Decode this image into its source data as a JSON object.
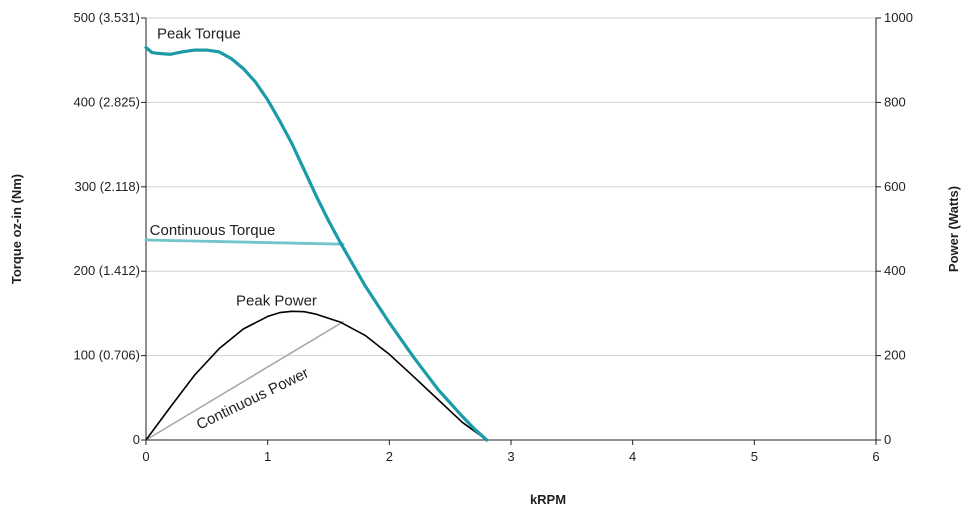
{
  "chart_data": {
    "type": "line",
    "xlabel": "kRPM",
    "ylabel_left": "Torque oz-in (Nm)",
    "ylabel_right": "Power (Watts)",
    "xlim": [
      0,
      6
    ],
    "ylim_left": [
      0,
      500
    ],
    "ylim_right": [
      0,
      1000
    ],
    "grid": true,
    "x_ticks": [
      "0",
      "1",
      "2",
      "3",
      "4",
      "5",
      "6"
    ],
    "y_left_ticks": [
      "0",
      "100 (0.706)",
      "200 (1.412)",
      "300 (2.118)",
      "400 (2.825)",
      "500 (3.531)"
    ],
    "y_right_ticks": [
      "0",
      "200",
      "400",
      "600",
      "800",
      "1000"
    ],
    "series": [
      {
        "name": "Peak Torque",
        "axis": "left",
        "color": "#1b9ba7",
        "points": [
          [
            0,
            465
          ],
          [
            0.05,
            459
          ],
          [
            0.1,
            458
          ],
          [
            0.2,
            457
          ],
          [
            0.3,
            460
          ],
          [
            0.4,
            462
          ],
          [
            0.5,
            462
          ],
          [
            0.6,
            460
          ],
          [
            0.7,
            452
          ],
          [
            0.8,
            440
          ],
          [
            0.9,
            424
          ],
          [
            1.0,
            403
          ],
          [
            1.1,
            378
          ],
          [
            1.2,
            351
          ],
          [
            1.3,
            320
          ],
          [
            1.4,
            289
          ],
          [
            1.5,
            260
          ],
          [
            1.6,
            233
          ],
          [
            1.8,
            183
          ],
          [
            2.0,
            139
          ],
          [
            2.2,
            98
          ],
          [
            2.4,
            60
          ],
          [
            2.6,
            28
          ],
          [
            2.7,
            13
          ],
          [
            2.8,
            0
          ]
        ]
      },
      {
        "name": "Continuous Torque",
        "axis": "left",
        "color": "#72c4cb",
        "points": [
          [
            0,
            237
          ],
          [
            1.62,
            232
          ]
        ]
      },
      {
        "name": "Peak Power",
        "axis": "right",
        "color": "#000000",
        "points": [
          [
            0,
            0
          ],
          [
            0.2,
            78
          ],
          [
            0.4,
            154
          ],
          [
            0.6,
            216
          ],
          [
            0.8,
            263
          ],
          [
            1.0,
            293
          ],
          [
            1.1,
            302
          ],
          [
            1.2,
            305
          ],
          [
            1.3,
            304
          ],
          [
            1.4,
            298
          ],
          [
            1.6,
            279
          ],
          [
            1.8,
            248
          ],
          [
            2.0,
            203
          ],
          [
            2.2,
            150
          ],
          [
            2.4,
            96
          ],
          [
            2.6,
            42
          ],
          [
            2.8,
            0
          ]
        ]
      },
      {
        "name": "Continuous Power",
        "axis": "right",
        "color": "#a7a9ac",
        "points": [
          [
            0,
            0
          ],
          [
            1.62,
            280
          ]
        ]
      }
    ]
  }
}
